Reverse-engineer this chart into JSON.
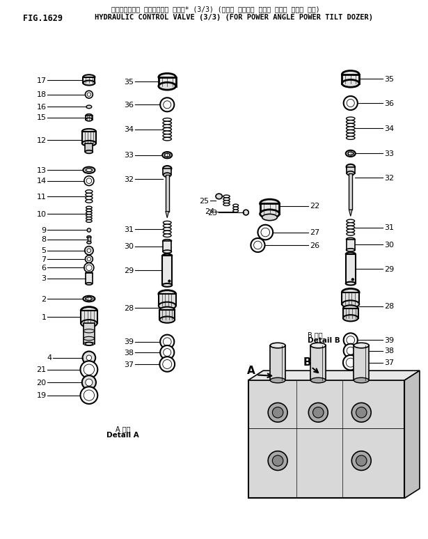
{
  "title_japanese": "ハイドロリック コントロール バルブ* (3/3) (パワー アングル パワー チルト ドーザ ヨウ)",
  "title_english": "HYDRAULIC CONTROL VALVE (3/3) (FOR POWER ANGLE POWER TILT DOZER)",
  "fig_label": "FIG.1629",
  "bg_color": "#ffffff",
  "text_color": "#000000",
  "line_color": "#000000",
  "detail_a_jp": "A 詳細",
  "detail_a_en": "Detail A",
  "detail_b_jp": "B 詳細",
  "detail_b_en": "Detail B"
}
